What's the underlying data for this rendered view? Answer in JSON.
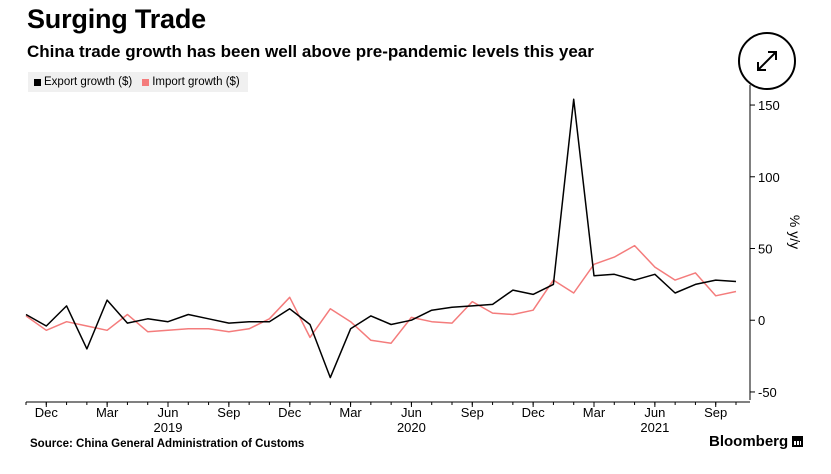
{
  "header": {
    "title": "Surging Trade",
    "subtitle": "China trade growth has been well above pre-pandemic levels this year"
  },
  "footer": {
    "source": "Source: China General Administration of Customs",
    "brand": "Bloomberg"
  },
  "chart_data": {
    "type": "line",
    "title": "Surging Trade",
    "subtitle": "China trade growth has been well above pre-pandemic levels this year",
    "ylabel": "% y/y",
    "ylim": [
      -57,
      157
    ],
    "yticks": [
      -50,
      0,
      50,
      100,
      150
    ],
    "y_axis_side": "right",
    "grid": false,
    "legend_placement": "top-left",
    "x_start": "2018-11",
    "month_ticks": [
      {
        "label": "Dec",
        "x": "2018-12"
      },
      {
        "label": "Mar",
        "x": "2019-03"
      },
      {
        "label": "Jun",
        "x": "2019-06"
      },
      {
        "label": "Sep",
        "x": "2019-09"
      },
      {
        "label": "Dec",
        "x": "2019-12"
      },
      {
        "label": "Mar",
        "x": "2020-03"
      },
      {
        "label": "Jun",
        "x": "2020-06"
      },
      {
        "label": "Sep",
        "x": "2020-09"
      },
      {
        "label": "Dec",
        "x": "2020-12"
      },
      {
        "label": "Mar",
        "x": "2021-03"
      },
      {
        "label": "Jun",
        "x": "2021-06"
      },
      {
        "label": "Sep",
        "x": "2021-09"
      }
    ],
    "year_ticks": [
      {
        "label": "2019",
        "x": "2019-06"
      },
      {
        "label": "2020",
        "x": "2020-06"
      },
      {
        "label": "2021",
        "x": "2021-06"
      }
    ],
    "x": [
      "2018-11",
      "2018-12",
      "2019-01",
      "2019-02",
      "2019-03",
      "2019-04",
      "2019-05",
      "2019-06",
      "2019-07",
      "2019-08",
      "2019-09",
      "2019-10",
      "2019-11",
      "2019-12",
      "2020-01",
      "2020-02",
      "2020-03",
      "2020-04",
      "2020-05",
      "2020-06",
      "2020-07",
      "2020-08",
      "2020-09",
      "2020-10",
      "2020-11",
      "2020-12",
      "2021-01",
      "2021-02",
      "2021-03",
      "2021-04",
      "2021-05",
      "2021-06",
      "2021-07",
      "2021-08",
      "2021-09",
      "2021-10"
    ],
    "series": [
      {
        "name": "Export growth ($)",
        "color": "#000000",
        "values": [
          4,
          -4,
          10,
          -20,
          14,
          -2,
          1,
          -1,
          4,
          1,
          -2,
          -1,
          -1,
          8,
          -3,
          -40,
          -6,
          3,
          -3,
          0,
          7,
          9,
          10,
          11,
          21,
          18,
          25,
          154,
          31,
          32,
          28,
          32,
          19,
          25,
          28,
          27
        ]
      },
      {
        "name": "Import growth ($)",
        "color": "#f47c7c",
        "values": [
          3,
          -7,
          -1,
          -4,
          -7,
          4,
          -8,
          -7,
          -6,
          -6,
          -8,
          -6,
          1,
          16,
          -12,
          8,
          -1,
          -14,
          -16,
          2,
          -1,
          -2,
          13,
          5,
          4,
          7,
          28,
          19,
          39,
          44,
          52,
          37,
          28,
          33,
          17,
          20
        ]
      }
    ]
  }
}
